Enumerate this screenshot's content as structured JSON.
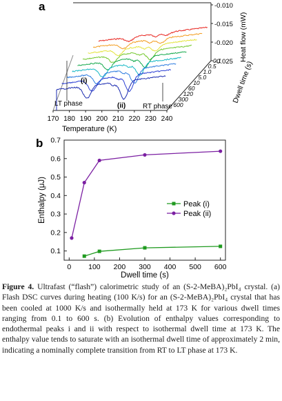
{
  "figure": {
    "panel_a": {
      "label": "a",
      "xlabel": "Temperature (K)",
      "x_ticks": [
        "170",
        "180",
        "190",
        "200",
        "210",
        "220",
        "230",
        "240"
      ],
      "ylabel": "Heat flow (mW)",
      "y_ticks": [
        "-0.010",
        "-0.015",
        "-0.020",
        "-0.025"
      ],
      "depth_label": "Dwell time (s)",
      "depth_ticks": [
        "0.1",
        "0.5",
        "1.0",
        "5.0",
        "10",
        "60",
        "120",
        "300",
        "600"
      ],
      "annotations": {
        "lt_phase": "LT phase",
        "rt_phase": "RT phase",
        "peak_i": "(i)",
        "peak_ii": "(ii)"
      },
      "series_colors": [
        "#e8231d",
        "#f39c1e",
        "#e3e33a",
        "#72c72b",
        "#12a84a",
        "#14b7c4",
        "#2f7de0",
        "#2b3fd4",
        "#1b2bb0"
      ]
    },
    "panel_b": {
      "label": "b",
      "chart_data": {
        "type": "line",
        "xlabel": "Dwell time (s)",
        "ylabel": "Enthalpy (μJ)",
        "xlim": [
          -20,
          620
        ],
        "ylim": [
          0.05,
          0.7
        ],
        "x_ticks": [
          "0",
          "100",
          "200",
          "300",
          "400",
          "500",
          "600"
        ],
        "y_ticks": [
          "0.1",
          "0.2",
          "0.3",
          "0.4",
          "0.5",
          "0.6",
          "0.7"
        ],
        "legend_position": "right",
        "series": [
          {
            "name": "Peak (i)",
            "color": "#1f9a1f",
            "marker": "square",
            "x": [
              60,
              120,
              300,
              600
            ],
            "y": [
              0.072,
              0.098,
              0.117,
              0.125
            ]
          },
          {
            "name": "Peak (ii)",
            "color": "#7b1fa2",
            "marker": "circle",
            "x": [
              10,
              60,
              120,
              300,
              600
            ],
            "y": [
              0.17,
              0.47,
              0.59,
              0.62,
              0.64
            ]
          }
        ]
      }
    }
  },
  "caption": {
    "fig_label": "Figure 4.",
    "text": "Ultrafast (“flash”) calorimetric study of an (S-2-MeBA)₂PbI₄ crystal. (a) Flash DSC curves during heating (100 K/s) for an (S-2-MeBA)₂PbI₄ crystal that has been cooled at 1000 K/s and isothermally held at 173 K for various dwell times ranging from 0.1 to 600 s. (b) Evolution of enthalpy values corresponding to endothermal peaks i and ii with respect to isothermal dwell time at 173 K. The enthalpy value tends to saturate with an isothermal dwell time of approximately 2 min, indicating a nominally complete transition from RT to LT phase at 173 K."
  }
}
